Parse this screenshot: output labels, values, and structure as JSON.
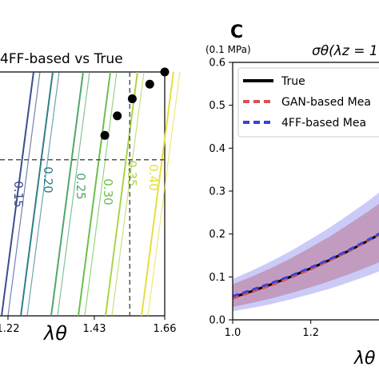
{
  "chart_data": [
    {
      "type": "line",
      "title": "4FF-based vs True",
      "xlabel": "λθ",
      "ylabel": "",
      "x_ticks": [
        "1.22",
        "1.43",
        "1.66"
      ],
      "xlim": [
        1.0,
        1.66
      ],
      "contour_labels": [
        "0.15",
        "0.20",
        "0.25",
        "0.30",
        "0.35",
        "0.40"
      ],
      "contour_colors": [
        "#3b4d8c",
        "#2e7f8a",
        "#4fa86b",
        "#6cbf4f",
        "#a8d646",
        "#e6df3c"
      ],
      "hline_y_frac": 0.36,
      "vline_x": 1.52,
      "points": [
        {
          "x": 1.42,
          "y": 0.74
        },
        {
          "x": 1.47,
          "y": 0.82
        },
        {
          "x": 1.53,
          "y": 0.89
        },
        {
          "x": 1.6,
          "y": 0.95
        },
        {
          "x": 1.66,
          "y": 1.0
        }
      ]
    },
    {
      "type": "line",
      "panel_label": "C",
      "unit_label": "(0.1 MPa)",
      "title": "σθ(λz = 1",
      "xlabel": "λθ",
      "ylabel": "",
      "xlim": [
        1.0,
        1.6
      ],
      "ylim": [
        0.0,
        0.6
      ],
      "x_ticks": [
        "1.0",
        "1.2"
      ],
      "y_ticks": [
        "0.0",
        "0.1",
        "0.2",
        "0.3",
        "0.4",
        "0.5",
        "0.6"
      ],
      "legend": [
        {
          "name": "True",
          "color": "#000000"
        },
        {
          "name": "GAN-based Mea",
          "color": "#d9534f"
        },
        {
          "name": "4FF-based Mea",
          "color": "#3b3fe0"
        }
      ],
      "x": [
        1.0,
        1.05,
        1.1,
        1.15,
        1.2,
        1.25,
        1.3,
        1.35,
        1.4,
        1.45
      ],
      "series": [
        {
          "name": "True",
          "values": [
            0.052,
            0.067,
            0.083,
            0.101,
            0.12,
            0.14,
            0.162,
            0.186,
            0.212,
            0.24
          ]
        },
        {
          "name": "GAN-based Mea",
          "values": [
            0.05,
            0.065,
            0.081,
            0.099,
            0.118,
            0.139,
            0.161,
            0.186,
            0.212,
            0.241
          ]
        },
        {
          "name": "4FF-based Mea",
          "values": [
            0.055,
            0.07,
            0.086,
            0.103,
            0.122,
            0.142,
            0.164,
            0.188,
            0.213,
            0.24
          ]
        }
      ],
      "band_upper": [
        0.095,
        0.115,
        0.137,
        0.161,
        0.188,
        0.216,
        0.247,
        0.279,
        0.314,
        0.35
      ],
      "band_lower": [
        0.02,
        0.028,
        0.037,
        0.048,
        0.06,
        0.073,
        0.088,
        0.104,
        0.122,
        0.141
      ]
    }
  ]
}
